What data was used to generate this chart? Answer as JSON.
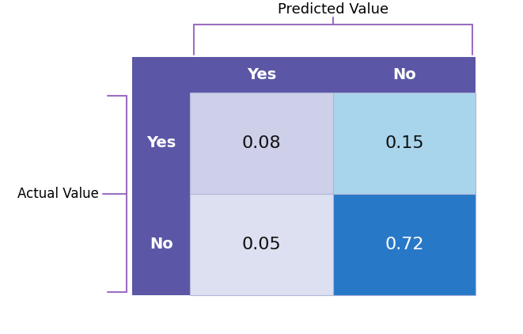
{
  "title": "Predicted Value",
  "actual_label": "Actual Value",
  "col_labels": [
    "Yes",
    "No"
  ],
  "row_labels": [
    "Yes",
    "No"
  ],
  "values": [
    [
      0.08,
      0.15
    ],
    [
      0.05,
      0.72
    ]
  ],
  "cell_colors": [
    [
      "#cdd0e8",
      "#a8d4ec"
    ],
    [
      "#dde0f0",
      "#2878c8"
    ]
  ],
  "header_bg": "#5b57a6",
  "header_text": "#ffffff",
  "cell_text_colors": [
    [
      "#111111",
      "#111111"
    ],
    [
      "#111111",
      "#ffffff"
    ]
  ],
  "bracket_color": "#9b6fc0",
  "background_color": "#ffffff",
  "title_fontsize": 13,
  "label_fontsize": 12,
  "cell_fontsize": 16,
  "header_fontsize": 14
}
